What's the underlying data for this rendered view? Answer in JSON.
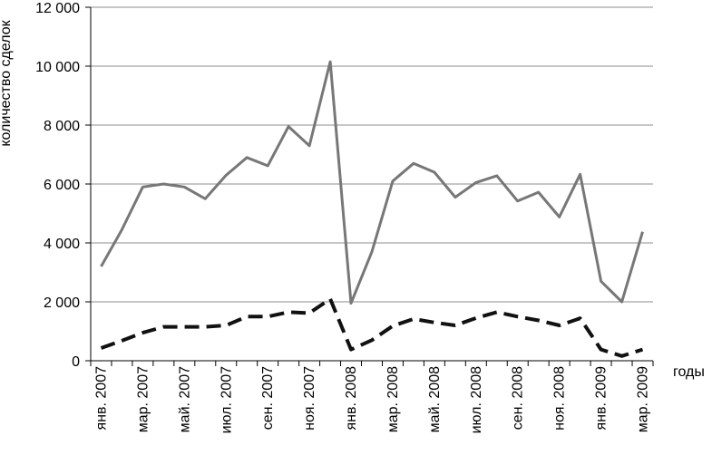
{
  "chart_data": {
    "type": "line",
    "title": "",
    "xlabel": "годы",
    "ylabel": "количество сделок",
    "ylim": [
      0,
      12000
    ],
    "yticks": [
      0,
      2000,
      4000,
      6000,
      8000,
      10000,
      12000
    ],
    "ytick_labels": [
      "0",
      "2 000",
      "4 000",
      "6 000",
      "8 000",
      "10 000",
      "12 000"
    ],
    "grid": true,
    "legend": "none",
    "categories": [
      "янв. 2007",
      "фев. 2007",
      "мар. 2007",
      "апр. 2007",
      "май. 2007",
      "июн. 2007",
      "июл. 2007",
      "авг. 2007",
      "сен. 2007",
      "окт. 2007",
      "ноя. 2007",
      "дек. 2007",
      "янв. 2008",
      "фев. 2008",
      "мар. 2008",
      "апр. 2008",
      "май. 2008",
      "июн. 2008",
      "июл. 2008",
      "авг. 2008",
      "сен. 2008",
      "окт. 2008",
      "ноя. 2008",
      "дек. 2008",
      "янв. 2009",
      "фев. 2009",
      "мар. 2009"
    ],
    "tick_labels": [
      "янв. 2007",
      "мар. 2007",
      "май. 2007",
      "июл. 2007",
      "сен. 2007",
      "ноя. 2007",
      "янв. 2008",
      "мар. 2008",
      "май. 2008",
      "июл. 2008",
      "сен. 2008",
      "ноя. 2008",
      "янв. 2009",
      "мар. 2009"
    ],
    "series": [
      {
        "style": "solid",
        "color": "#777777",
        "values": [
          3200,
          4450,
          5900,
          6000,
          5900,
          5500,
          6300,
          6900,
          6620,
          7950,
          7300,
          10150,
          1950,
          3700,
          6100,
          6700,
          6400,
          5550,
          6050,
          6280,
          5420,
          5720,
          4880,
          6330,
          2700,
          2000,
          4380
        ]
      },
      {
        "style": "dashed",
        "color": "#111111",
        "values": [
          430,
          680,
          950,
          1150,
          1150,
          1150,
          1200,
          1500,
          1500,
          1650,
          1620,
          2100,
          380,
          700,
          1180,
          1420,
          1300,
          1200,
          1450,
          1650,
          1500,
          1370,
          1200,
          1440,
          380,
          160,
          380
        ]
      }
    ]
  }
}
